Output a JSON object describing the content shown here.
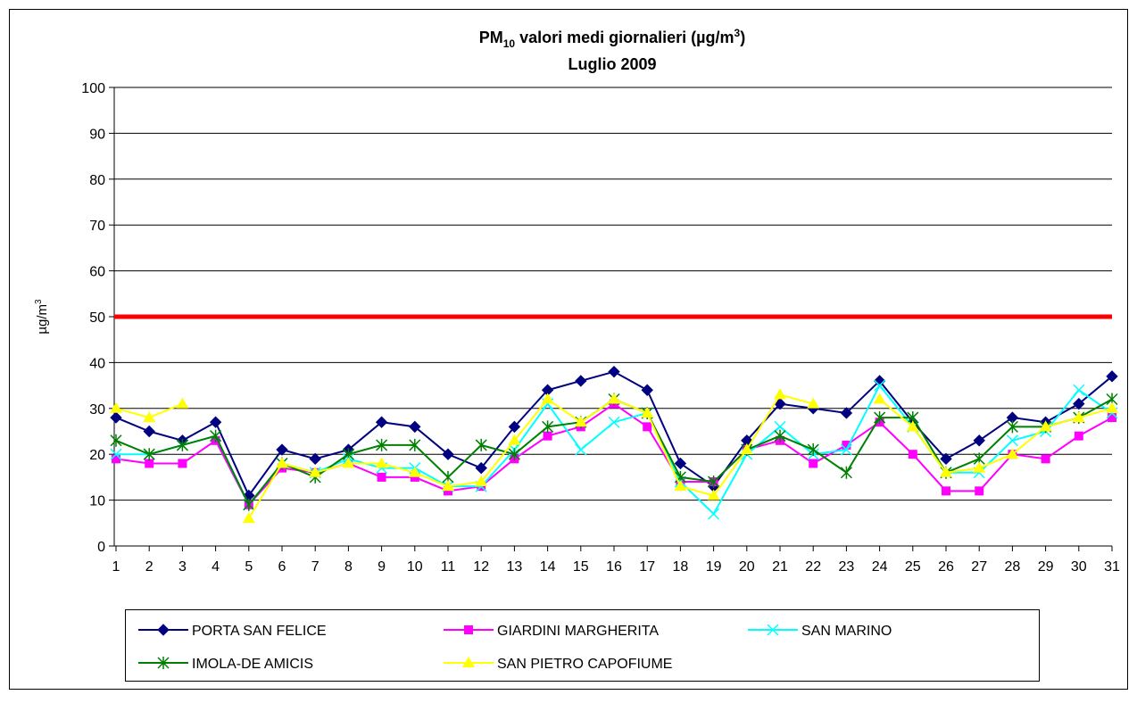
{
  "chart_data": {
    "type": "line",
    "title": [
      "PM",
      "10",
      " valori medi giornalieri (µg/m",
      "3",
      ")"
    ],
    "subtitle": "Luglio 2009",
    "y_label": [
      "µg/m",
      "3"
    ],
    "categories": [
      "1",
      "2",
      "3",
      "4",
      "5",
      "6",
      "7",
      "8",
      "9",
      "10",
      "11",
      "12",
      "13",
      "14",
      "15",
      "16",
      "17",
      "18",
      "19",
      "20",
      "21",
      "22",
      "23",
      "24",
      "25",
      "26",
      "27",
      "28",
      "29",
      "30",
      "31"
    ],
    "ylim": [
      0,
      100
    ],
    "yticks": [
      0,
      10,
      20,
      30,
      40,
      50,
      60,
      70,
      80,
      90,
      100
    ],
    "grid": true,
    "reference_line": {
      "value": 50,
      "color": "#ff0000"
    },
    "legend": "bottom",
    "series": [
      {
        "name": "PORTA SAN FELICE",
        "color": "#000080",
        "marker": "diamond",
        "values": [
          28,
          25,
          23,
          27,
          11,
          21,
          19,
          21,
          27,
          26,
          20,
          17,
          26,
          34,
          36,
          38,
          34,
          18,
          13,
          23,
          31,
          30,
          29,
          36,
          27,
          19,
          23,
          28,
          27,
          31,
          37
        ]
      },
      {
        "name": "GIARDINI MARGHERITA",
        "color": "#ff00ff",
        "marker": "square",
        "values": [
          19,
          18,
          18,
          23,
          9,
          17,
          16,
          18,
          15,
          15,
          12,
          13,
          19,
          24,
          26,
          31,
          26,
          14,
          14,
          21,
          23,
          18,
          22,
          27,
          20,
          12,
          12,
          20,
          19,
          24,
          28
        ]
      },
      {
        "name": "SAN MARINO",
        "color": "#00ffff",
        "marker": "x",
        "values": [
          20,
          20,
          22,
          24,
          9,
          18,
          16,
          19,
          17,
          17,
          13,
          13,
          21,
          31,
          21,
          27,
          29,
          14,
          7,
          20,
          26,
          20,
          21,
          35,
          26,
          16,
          16,
          23,
          25,
          34,
          29
        ]
      },
      {
        "name": "IMOLA-DE AMICIS",
        "color": "#008000",
        "marker": "star",
        "values": [
          23,
          20,
          22,
          24,
          9,
          18,
          15,
          20,
          22,
          22,
          15,
          22,
          20,
          26,
          27,
          32,
          29,
          15,
          14,
          21,
          24,
          21,
          16,
          28,
          28,
          16,
          19,
          26,
          26,
          28,
          32
        ]
      },
      {
        "name": "SAN PIETRO CAPOFIUME",
        "color": "#ffff00",
        "marker": "triangle",
        "values": [
          30,
          28,
          31,
          null,
          6,
          18,
          16,
          18,
          18,
          16,
          13,
          14,
          23,
          32,
          27,
          32,
          29,
          13,
          11,
          21,
          33,
          31,
          null,
          32,
          26,
          16,
          17,
          20,
          26,
          28,
          30
        ]
      }
    ]
  }
}
